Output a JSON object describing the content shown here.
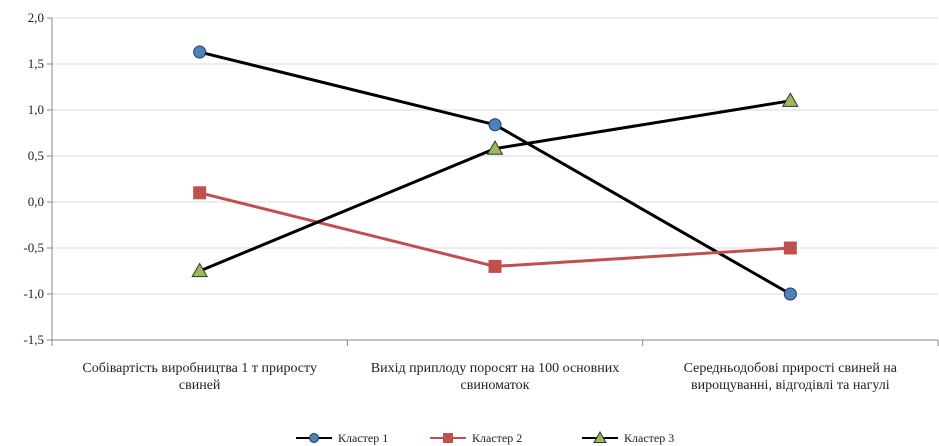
{
  "chart_data": {
    "type": "line",
    "categories": [
      [
        "Собівартість виробництва 1 т приросту",
        "свиней"
      ],
      [
        "Вихід приплоду поросят на 100 основних",
        "свиноматок"
      ],
      [
        "Середньодобові прирості свиней на",
        "вирощуванні, відгодівлі та нагулі"
      ]
    ],
    "yticks": [
      "2,0",
      "1,5",
      "1,0",
      "0,5",
      "0,0",
      "-0,5",
      "-1,0",
      "-1,5"
    ],
    "ylim": [
      -1.5,
      2.0
    ],
    "ystep": 0.5,
    "grid": true,
    "legend_position": "bottom",
    "series": [
      {
        "name": "Кластер 1",
        "values": [
          1.63,
          0.84,
          -1.0
        ],
        "color": "#4f81bd",
        "marker": "circle"
      },
      {
        "name": "Кластер  2",
        "values": [
          0.1,
          -0.7,
          -0.5
        ],
        "color": "#c0504d",
        "marker": "square"
      },
      {
        "name": "Кластер 3",
        "values": [
          -0.75,
          0.58,
          1.1
        ],
        "color": "#9bbb59",
        "marker": "triangle"
      }
    ],
    "series_line_colors": [
      "#000000",
      "#c0504d",
      "#000000"
    ]
  }
}
